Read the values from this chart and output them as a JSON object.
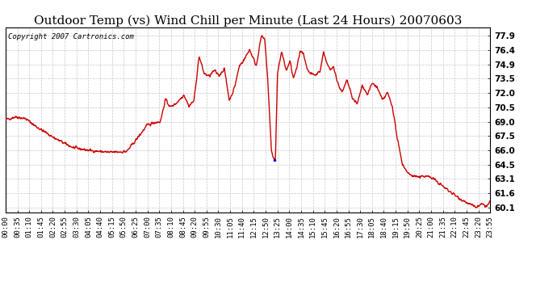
{
  "title": "Outdoor Temp (vs) Wind Chill per Minute (Last 24 Hours) 20070603",
  "copyright_text": "Copyright 2007 Cartronics.com",
  "background_color": "#ffffff",
  "grid_color": "#c8c8c8",
  "line_color": "#cc0000",
  "blue_dot_color": "#0000cc",
  "ylim": [
    59.6,
    78.8
  ],
  "yticks": [
    60.1,
    61.6,
    63.1,
    64.5,
    66.0,
    67.5,
    69.0,
    70.5,
    72.0,
    73.5,
    74.9,
    76.4,
    77.9
  ],
  "xtick_labels": [
    "00:00",
    "00:35",
    "01:10",
    "01:45",
    "02:20",
    "02:55",
    "03:30",
    "04:05",
    "04:40",
    "05:15",
    "05:50",
    "06:25",
    "07:00",
    "07:35",
    "08:10",
    "08:45",
    "09:20",
    "09:55",
    "10:30",
    "11:05",
    "11:40",
    "12:15",
    "12:50",
    "13:25",
    "14:00",
    "14:35",
    "15:10",
    "15:45",
    "16:20",
    "16:55",
    "17:30",
    "18:05",
    "18:40",
    "19:15",
    "19:50",
    "20:25",
    "21:00",
    "21:35",
    "22:10",
    "22:45",
    "23:20",
    "23:55"
  ],
  "title_fontsize": 11,
  "copyright_fontsize": 6.5,
  "tick_fontsize": 6.5,
  "ytick_fontsize": 7.5,
  "line_width": 1.0
}
